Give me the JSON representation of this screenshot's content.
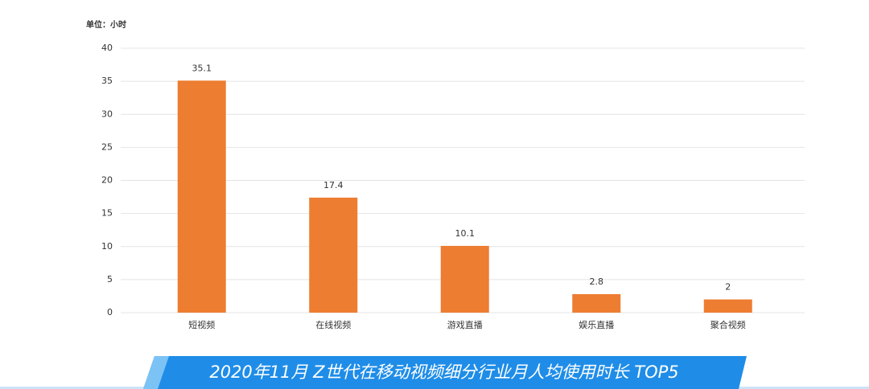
{
  "chart_data": {
    "type": "bar",
    "unit_label": "单位：小时",
    "title": "2020年11月 Z世代在移动视频细分行业月人均使用时长 TOP5",
    "categories": [
      "短视频",
      "在线视频",
      "游戏直播",
      "娱乐直播",
      "聚合视频"
    ],
    "values": [
      35.1,
      17.4,
      10.1,
      2.8,
      2
    ],
    "color": "#ed7d31",
    "ylim": [
      0,
      40
    ],
    "yticks": [
      0,
      5,
      10,
      15,
      20,
      25,
      30,
      35,
      40
    ],
    "grid": true
  }
}
